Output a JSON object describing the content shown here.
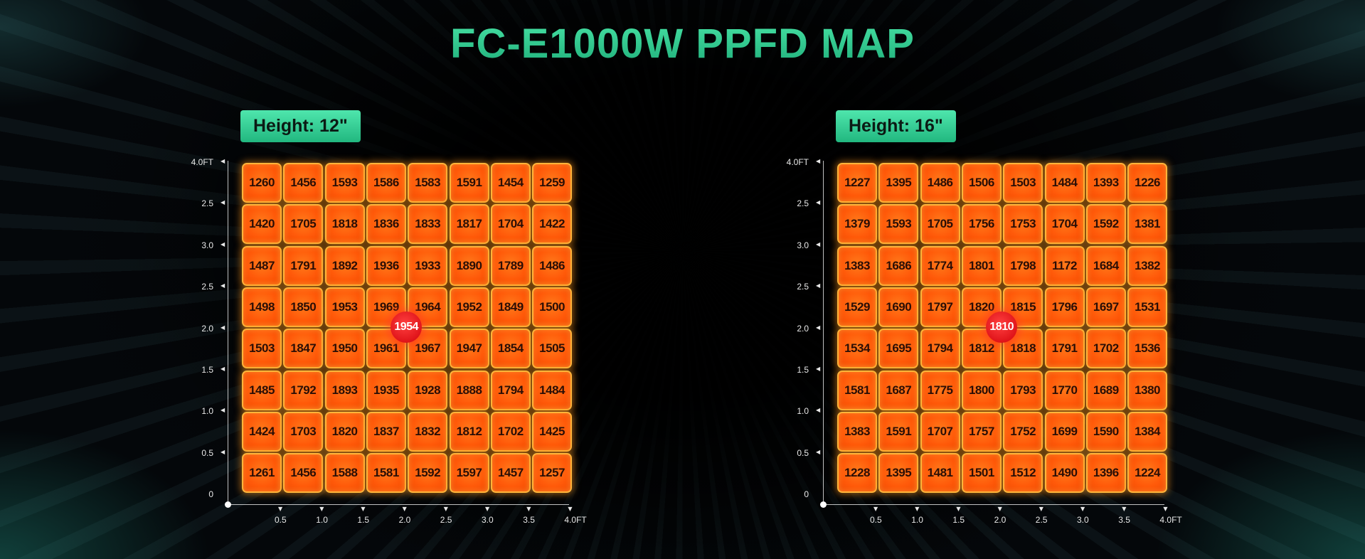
{
  "page": {
    "title": "FC-E1000W PPFD MAP"
  },
  "colors": {
    "title_gradient": [
      "#47e2a4",
      "#1fae7a"
    ],
    "badge": "#2ccb8e",
    "cell": "#ff5a0a",
    "cell_border": "#ffb43a",
    "center_marker": "#e0141a"
  },
  "chart_data": [
    {
      "type": "heatmap",
      "height_label": "Height: 12\"",
      "y_tick_labels": [
        "4.0FT",
        "2.5",
        "3.0",
        "2.5",
        "2.0",
        "1.5",
        "1.0",
        "0.5",
        "0"
      ],
      "x_tick_labels": [
        "0.5",
        "1.0",
        "1.5",
        "2.0",
        "2.5",
        "3.0",
        "3.5",
        "4.0FT"
      ],
      "grid": [
        [
          1260,
          1456,
          1593,
          1586,
          1583,
          1591,
          1454,
          1259
        ],
        [
          1420,
          1705,
          1818,
          1836,
          1833,
          1817,
          1704,
          1422
        ],
        [
          1487,
          1791,
          1892,
          1936,
          1933,
          1890,
          1789,
          1486
        ],
        [
          1498,
          1850,
          1953,
          1969,
          1964,
          1952,
          1849,
          1500
        ],
        [
          1503,
          1847,
          1950,
          1961,
          1967,
          1947,
          1854,
          1505
        ],
        [
          1485,
          1792,
          1893,
          1935,
          1928,
          1888,
          1794,
          1484
        ],
        [
          1424,
          1703,
          1820,
          1837,
          1832,
          1812,
          1702,
          1425
        ],
        [
          1261,
          1456,
          1588,
          1581,
          1592,
          1597,
          1457,
          1257
        ]
      ],
      "center_value": 1954
    },
    {
      "type": "heatmap",
      "height_label": "Height: 16\"",
      "y_tick_labels": [
        "4.0FT",
        "2.5",
        "3.0",
        "2.5",
        "2.0",
        "1.5",
        "1.0",
        "0.5",
        "0"
      ],
      "x_tick_labels": [
        "0.5",
        "1.0",
        "1.5",
        "2.0",
        "2.5",
        "3.0",
        "3.5",
        "4.0FT"
      ],
      "grid": [
        [
          1227,
          1395,
          1486,
          1506,
          1503,
          1484,
          1393,
          1226
        ],
        [
          1379,
          1593,
          1705,
          1756,
          1753,
          1704,
          1592,
          1381
        ],
        [
          1383,
          1686,
          1774,
          1801,
          1798,
          1172,
          1684,
          1382
        ],
        [
          1529,
          1690,
          1797,
          1820,
          1815,
          1796,
          1697,
          1531
        ],
        [
          1534,
          1695,
          1794,
          1812,
          1818,
          1791,
          1702,
          1536
        ],
        [
          1581,
          1687,
          1775,
          1800,
          1793,
          1770,
          1689,
          1380
        ],
        [
          1383,
          1591,
          1707,
          1757,
          1752,
          1699,
          1590,
          1384
        ],
        [
          1228,
          1395,
          1481,
          1501,
          1512,
          1490,
          1396,
          1224
        ]
      ],
      "center_value": 1810
    }
  ]
}
